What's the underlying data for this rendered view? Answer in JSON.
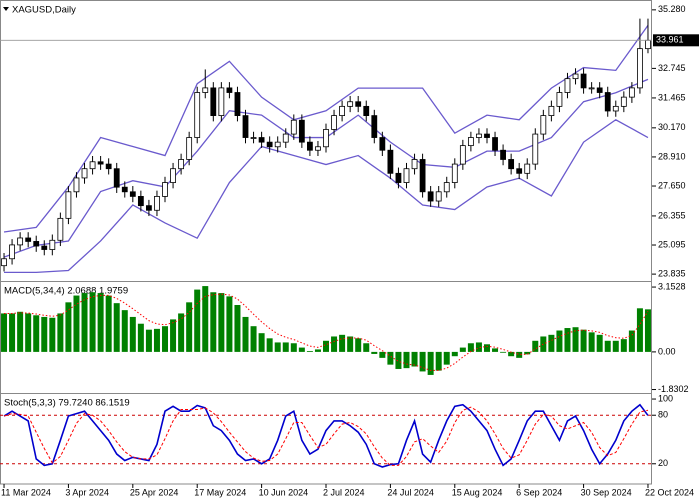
{
  "chart_data": [
    {
      "type": "candlestick",
      "title": "XAGUSD,Daily",
      "categories": [
        "11 Mar 2024",
        null,
        null,
        null,
        null,
        null,
        null,
        null,
        "3 Apr 2024",
        null,
        null,
        null,
        null,
        null,
        null,
        null,
        "25 Apr 2024",
        null,
        null,
        null,
        null,
        null,
        null,
        null,
        "17 May 2024",
        null,
        null,
        null,
        null,
        null,
        null,
        null,
        "10 Jun 2024",
        null,
        null,
        null,
        null,
        null,
        null,
        null,
        "2 Jul 2024",
        null,
        null,
        null,
        null,
        null,
        null,
        null,
        "24 Jul 2024",
        null,
        null,
        null,
        null,
        null,
        null,
        null,
        "15 Aug 2024",
        null,
        null,
        null,
        null,
        null,
        null,
        null,
        "6 Sep 2024",
        null,
        null,
        null,
        null,
        null,
        null,
        null,
        "30 Sep 2024",
        null,
        null,
        null,
        null,
        null,
        null,
        null,
        "22 Oct 2024"
      ],
      "open": [
        24.2,
        24.5,
        25.1,
        25.4,
        25.25,
        25.05,
        24.9,
        25.3,
        26.25,
        27.4,
        28.0,
        28.4,
        28.7,
        28.6,
        28.4,
        27.6,
        27.4,
        27.2,
        26.8,
        26.6,
        27.2,
        27.8,
        28.4,
        28.8,
        29.75,
        31.7,
        31.9,
        30.7,
        31.9,
        31.7,
        30.7,
        29.75,
        29.75,
        29.55,
        29.35,
        29.55,
        29.9,
        30.5,
        29.55,
        29.2,
        29.35,
        30.1,
        30.7,
        31.1,
        31.3,
        31.1,
        30.7,
        29.75,
        29.2,
        28.2,
        27.8,
        28.4,
        28.8,
        27.4,
        27.0,
        27.4,
        27.8,
        28.6,
        29.4,
        29.75,
        29.9,
        29.75,
        29.2,
        28.8,
        28.4,
        28.2,
        28.6,
        29.9,
        30.7,
        31.1,
        31.7,
        32.3,
        32.5,
        31.9,
        31.9,
        31.7,
        30.9,
        31.1,
        31.5,
        31.9,
        33.6
      ],
      "high": [
        24.75,
        25.35,
        25.65,
        25.65,
        25.5,
        25.3,
        25.55,
        26.5,
        27.65,
        28.25,
        28.65,
        28.95,
        28.95,
        28.85,
        28.65,
        27.85,
        27.65,
        27.45,
        27.05,
        27.45,
        28.05,
        28.65,
        29.05,
        30.0,
        31.95,
        32.7,
        32.15,
        32.15,
        32.15,
        31.95,
        30.95,
        30.0,
        30.0,
        29.8,
        29.8,
        30.15,
        30.75,
        30.75,
        29.8,
        29.6,
        30.35,
        30.95,
        31.35,
        31.55,
        31.55,
        31.35,
        30.95,
        30.0,
        29.45,
        28.45,
        28.65,
        29.05,
        29.05,
        27.65,
        27.65,
        28.05,
        28.85,
        29.65,
        30.0,
        30.15,
        30.15,
        30.0,
        29.45,
        29.05,
        28.65,
        28.85,
        30.15,
        30.95,
        31.35,
        31.95,
        32.55,
        32.75,
        32.75,
        32.15,
        32.15,
        31.95,
        31.35,
        31.75,
        32.15,
        34.9,
        34.9
      ],
      "low": [
        23.95,
        24.25,
        24.85,
        25.0,
        24.8,
        24.65,
        24.65,
        25.05,
        26.0,
        27.15,
        27.75,
        28.15,
        28.35,
        28.15,
        27.35,
        27.15,
        26.95,
        26.55,
        26.35,
        26.35,
        26.95,
        27.55,
        28.15,
        28.55,
        29.5,
        31.45,
        30.45,
        30.45,
        31.45,
        30.45,
        29.5,
        29.5,
        29.3,
        29.1,
        29.1,
        29.3,
        29.65,
        29.3,
        28.95,
        28.95,
        29.1,
        29.85,
        30.45,
        30.85,
        30.85,
        30.45,
        29.5,
        28.95,
        27.95,
        27.55,
        27.55,
        28.15,
        27.15,
        26.75,
        26.75,
        27.15,
        27.55,
        28.35,
        29.15,
        29.5,
        29.5,
        28.95,
        28.55,
        28.15,
        27.95,
        27.95,
        28.35,
        29.65,
        30.45,
        30.85,
        31.45,
        32.05,
        31.65,
        31.65,
        31.45,
        30.65,
        30.65,
        30.85,
        31.25,
        31.65,
        33.4
      ],
      "close": [
        24.5,
        25.1,
        25.4,
        25.25,
        25.05,
        24.9,
        25.3,
        26.25,
        27.4,
        28.0,
        28.4,
        28.7,
        28.6,
        28.4,
        27.6,
        27.4,
        27.2,
        26.8,
        26.6,
        27.2,
        27.8,
        28.4,
        28.8,
        29.75,
        31.7,
        31.9,
        30.7,
        31.9,
        31.7,
        30.7,
        29.75,
        29.75,
        29.55,
        29.35,
        29.55,
        29.9,
        30.5,
        29.55,
        29.2,
        29.35,
        30.1,
        30.7,
        31.1,
        31.3,
        31.1,
        30.7,
        29.75,
        29.2,
        28.2,
        27.8,
        28.4,
        28.8,
        27.4,
        27.0,
        27.4,
        27.8,
        28.6,
        29.4,
        29.75,
        29.9,
        29.75,
        29.2,
        28.8,
        28.4,
        28.2,
        28.6,
        29.9,
        30.7,
        31.1,
        31.7,
        32.3,
        32.5,
        31.9,
        31.9,
        31.7,
        30.9,
        31.1,
        31.5,
        31.9,
        33.6,
        33.961
      ],
      "up_color": "#ffffff",
      "down_color": "#000000",
      "outline_color": "#000000",
      "bands": [
        {
          "color": "#6a5acd",
          "x": [
            0,
            4,
            8,
            12,
            16,
            20,
            24,
            28,
            32,
            36,
            40,
            44,
            48,
            52,
            56,
            60,
            64,
            68,
            72,
            76,
            80
          ],
          "values": [
            25.66,
            25.86,
            27.61,
            29.75,
            29.36,
            28.97,
            32.08,
            33.05,
            31.5,
            30.52,
            30.91,
            31.89,
            31.89,
            31.89,
            29.94,
            30.72,
            30.52,
            31.89,
            32.78,
            32.66,
            34.61
          ]
        },
        {
          "color": "#6a5acd",
          "x": [
            0,
            4,
            8,
            12,
            16,
            20,
            24,
            28,
            32,
            36,
            40,
            44,
            48,
            52,
            56,
            60,
            64,
            68,
            72,
            76,
            80
          ],
          "values": [
            24.57,
            25.08,
            25.27,
            27.41,
            27.88,
            27.61,
            29.16,
            30.91,
            30.72,
            29.75,
            29.75,
            30.72,
            29.55,
            28.58,
            28.46,
            29.16,
            29.16,
            29.75,
            31.3,
            31.69,
            32.27
          ]
        },
        {
          "color": "#6a5acd",
          "x": [
            0,
            4,
            8,
            12,
            16,
            20,
            24,
            28,
            32,
            36,
            40,
            44,
            48,
            52,
            56,
            60,
            64,
            68,
            72,
            76,
            80
          ],
          "values": [
            23.91,
            23.91,
            23.99,
            25.27,
            26.83,
            26.05,
            25.39,
            27.8,
            29.36,
            28.97,
            28.58,
            28.97,
            27.99,
            26.83,
            26.63,
            27.61,
            27.99,
            27.22,
            29.55,
            30.52,
            29.75
          ]
        }
      ],
      "last_price": 33.961,
      "ylim": [
        23.58,
        35.62
      ],
      "yticks": [
        {
          "value": 35.28,
          "label": "35.280"
        },
        32.745,
        31.465,
        {
          "value": 30.17,
          "label": "30.170"
        },
        {
          "value": 28.91,
          "label": "28.910"
        },
        {
          "value": 27.65,
          "label": "27.650"
        },
        26.355,
        25.095,
        23.835
      ]
    },
    {
      "type": "macd",
      "title": "MACD(5,34,4) 2.0688 1.9759",
      "series": [
        {
          "style": "histogram",
          "color": "#008000",
          "values": [
            1.87,
            1.87,
            1.95,
            1.87,
            1.78,
            1.7,
            1.66,
            1.87,
            2.41,
            2.74,
            2.86,
            2.9,
            2.86,
            2.74,
            2.37,
            2.03,
            1.7,
            1.37,
            1.08,
            1.12,
            1.25,
            1.58,
            1.87,
            2.41,
            3.03,
            3.2,
            2.9,
            2.86,
            2.7,
            2.28,
            1.7,
            1.25,
            0.91,
            0.66,
            0.46,
            0.46,
            0.42,
            0.21,
            0.04,
            0.12,
            0.54,
            0.75,
            0.83,
            0.75,
            0.66,
            0.42,
            -0.1,
            -0.29,
            -0.62,
            -0.83,
            -0.79,
            -0.71,
            -0.95,
            -1.12,
            -0.91,
            -0.62,
            -0.21,
            0.21,
            0.42,
            0.46,
            0.37,
            0.17,
            -0.04,
            -0.21,
            -0.29,
            -0.12,
            0.54,
            0.75,
            0.83,
            1.04,
            1.16,
            1.2,
            1.08,
            0.95,
            0.83,
            0.54,
            0.54,
            0.62,
            1.04,
            2.12,
            2.0688
          ]
        },
        {
          "style": "dotted",
          "color": "#ff0000",
          "values": [
            1.87,
            1.87,
            1.9,
            1.89,
            1.84,
            1.78,
            1.73,
            1.79,
            2.04,
            2.32,
            2.54,
            2.68,
            2.75,
            2.75,
            2.6,
            2.37,
            2.1,
            1.81,
            1.52,
            1.36,
            1.32,
            1.42,
            1.6,
            1.92,
            2.36,
            2.7,
            2.78,
            2.81,
            2.77,
            2.57,
            2.22,
            1.83,
            1.46,
            1.14,
            0.87,
            0.71,
            0.6,
            0.44,
            0.28,
            0.22,
            0.35,
            0.51,
            0.64,
            0.68,
            0.67,
            0.57,
            0.3,
            0.06,
            -0.21,
            -0.46,
            -0.59,
            -0.64,
            -0.76,
            -0.9,
            -0.9,
            -0.79,
            -0.56,
            -0.25,
            0.02,
            0.2,
            0.27,
            0.23,
            0.12,
            -0.01,
            -0.12,
            -0.12,
            0.14,
            0.38,
            0.56,
            0.75,
            0.91,
            1.03,
            1.06,
            1.02,
            0.95,
            0.79,
            0.69,
            0.66,
            0.81,
            1.34,
            1.9759
          ]
        }
      ],
      "ylim": [
        -1.95,
        3.35
      ],
      "yticks": [
        3.1528,
        {
          "value": 0,
          "label": "0.00"
        },
        -1.8302
      ]
    },
    {
      "type": "stochastic",
      "title": "Stoch(5,3,3) 79.7240 86.1519",
      "series": [
        {
          "style": "line",
          "color": "#0000cd",
          "values": [
            79,
            85,
            79,
            73,
            26,
            18,
            20,
            49,
            79,
            82,
            85,
            73,
            61,
            49,
            32,
            24,
            28,
            26,
            24,
            44,
            85,
            91,
            85,
            85,
            92,
            89,
            67,
            61,
            49,
            32,
            24,
            26,
            20,
            26,
            49,
            79,
            85,
            49,
            32,
            38,
            61,
            73,
            73,
            67,
            59,
            44,
            20,
            16,
            19,
            20,
            49,
            73,
            32,
            22,
            49,
            73,
            91,
            93,
            85,
            73,
            61,
            38,
            18,
            26,
            49,
            73,
            85,
            85,
            67,
            49,
            73,
            79,
            61,
            38,
            20,
            32,
            49,
            73,
            85,
            93,
            79.724
          ]
        },
        {
          "style": "dashed",
          "color": "#ff0000",
          "values": [
            79,
            82,
            81,
            79,
            59,
            39,
            21,
            29,
            49,
            70,
            82,
            80,
            73,
            61,
            47,
            35,
            28,
            26,
            26,
            31,
            51,
            73,
            87,
            87,
            87,
            89,
            83,
            72,
            59,
            47,
            35,
            27,
            23,
            24,
            32,
            51,
            71,
            71,
            55,
            40,
            44,
            57,
            69,
            71,
            66,
            57,
            41,
            27,
            18,
            18,
            29,
            47,
            51,
            42,
            34,
            48,
            71,
            86,
            90,
            84,
            73,
            57,
            39,
            27,
            31,
            49,
            69,
            81,
            79,
            67,
            63,
            67,
            71,
            59,
            40,
            30,
            34,
            51,
            69,
            84,
            86.1519
          ]
        }
      ],
      "levels": [
        80,
        20
      ],
      "level_color": "#cc0000",
      "ylim": [
        -5,
        105
      ],
      "yticks": [
        100,
        80,
        20
      ]
    }
  ]
}
